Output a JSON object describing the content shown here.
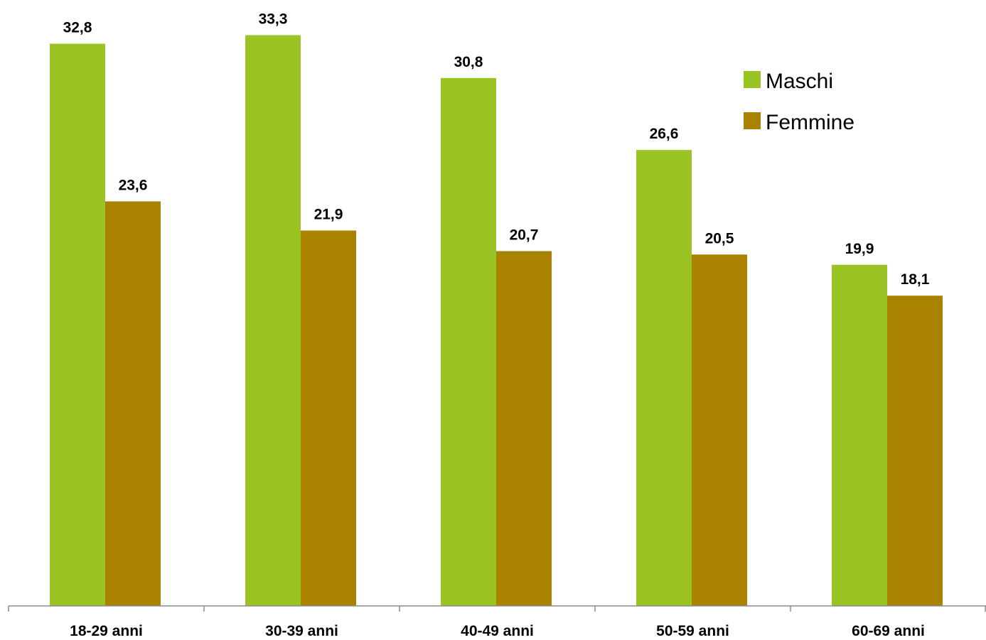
{
  "chart_data": {
    "type": "bar",
    "categories": [
      "18-29 anni",
      "30-39 anni",
      "40-49 anni",
      "50-59 anni",
      "60-69 anni"
    ],
    "series": [
      {
        "name": "Maschi",
        "values": [
          32.8,
          33.3,
          30.8,
          26.6,
          19.9
        ],
        "labels": [
          "32,8",
          "33,3",
          "30,8",
          "26,6",
          "19,9"
        ],
        "color": "#99C424"
      },
      {
        "name": "Femmine",
        "values": [
          23.6,
          21.9,
          20.7,
          20.5,
          18.1
        ],
        "labels": [
          "23,6",
          "21,9",
          "20,7",
          "20,5",
          "18,1"
        ],
        "color": "#A98200"
      }
    ],
    "title": "",
    "xlabel": "",
    "ylabel": "",
    "ylim": [
      0,
      35
    ],
    "grid": false,
    "legend": "top-right"
  }
}
